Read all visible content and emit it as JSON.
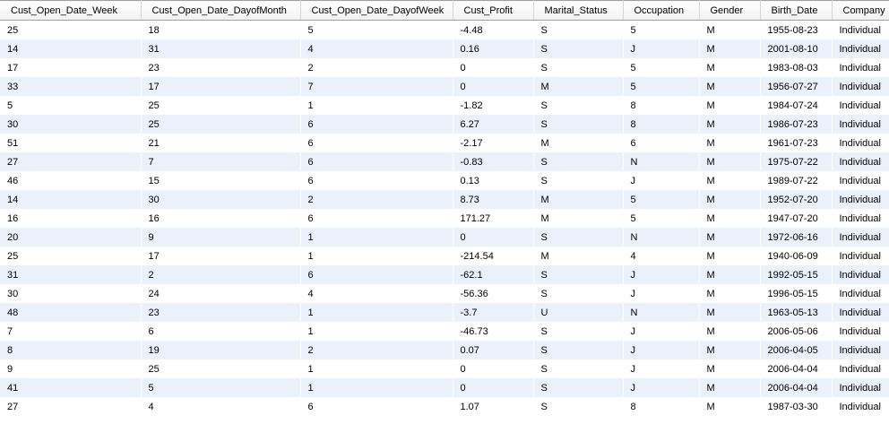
{
  "columns": [
    "Cust_Open_Date_Week",
    "Cust_Open_Date_DayofMonth",
    "Cust_Open_Date_DayofWeek",
    "Cust_Profit",
    "Marital_Status",
    "Occupation",
    "Gender",
    "Birth_Date",
    "Company"
  ],
  "rows": [
    [
      "25",
      "18",
      "5",
      "-4.48",
      "S",
      "5",
      "M",
      "1955-08-23",
      "Individual"
    ],
    [
      "14",
      "31",
      "4",
      "0.16",
      "S",
      "J",
      "M",
      "2001-08-10",
      "Individual"
    ],
    [
      "17",
      "23",
      "2",
      "0",
      "S",
      "5",
      "M",
      "1983-08-03",
      "Individual"
    ],
    [
      "33",
      "17",
      "7",
      "0",
      "M",
      "5",
      "M",
      "1956-07-27",
      "Individual"
    ],
    [
      "5",
      "25",
      "1",
      "-1.82",
      "S",
      "8",
      "M",
      "1984-07-24",
      "Individual"
    ],
    [
      "30",
      "25",
      "6",
      "6.27",
      "S",
      "8",
      "M",
      "1986-07-23",
      "Individual"
    ],
    [
      "51",
      "21",
      "6",
      "-2.17",
      "M",
      "6",
      "M",
      "1961-07-23",
      "Individual"
    ],
    [
      "27",
      "7",
      "6",
      "-0.83",
      "S",
      "N",
      "M",
      "1975-07-22",
      "Individual"
    ],
    [
      "46",
      "15",
      "6",
      "0.13",
      "S",
      "J",
      "M",
      "1989-07-22",
      "Individual"
    ],
    [
      "14",
      "30",
      "2",
      "8.73",
      "M",
      "5",
      "M",
      "1952-07-20",
      "Individual"
    ],
    [
      "16",
      "16",
      "6",
      "171.27",
      "M",
      "5",
      "M",
      "1947-07-20",
      "Individual"
    ],
    [
      "20",
      "9",
      "1",
      "0",
      "S",
      "N",
      "M",
      "1972-06-16",
      "Individual"
    ],
    [
      "25",
      "17",
      "1",
      "-214.54",
      "M",
      "4",
      "M",
      "1940-06-09",
      "Individual"
    ],
    [
      "31",
      "2",
      "6",
      "-62.1",
      "S",
      "J",
      "M",
      "1992-05-15",
      "Individual"
    ],
    [
      "30",
      "24",
      "4",
      "-56.36",
      "S",
      "J",
      "M",
      "1996-05-15",
      "Individual"
    ],
    [
      "48",
      "23",
      "1",
      "-3.7",
      "U",
      "N",
      "M",
      "1963-05-13",
      "Individual"
    ],
    [
      "7",
      "6",
      "1",
      "-46.73",
      "S",
      "J",
      "M",
      "2006-05-06",
      "Individual"
    ],
    [
      "8",
      "19",
      "2",
      "0.07",
      "S",
      "J",
      "M",
      "2006-04-05",
      "Individual"
    ],
    [
      "9",
      "25",
      "1",
      "0",
      "S",
      "J",
      "M",
      "2006-04-04",
      "Individual"
    ],
    [
      "41",
      "5",
      "1",
      "0",
      "S",
      "J",
      "M",
      "2006-04-04",
      "Individual"
    ],
    [
      "27",
      "4",
      "6",
      "1.07",
      "S",
      "8",
      "M",
      "1987-03-30",
      "Individual"
    ]
  ],
  "colors": {
    "alt_row": "#eaf1fb"
  }
}
